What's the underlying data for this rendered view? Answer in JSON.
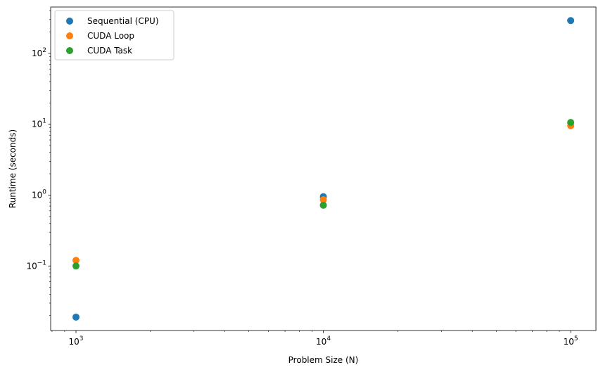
{
  "chart_data": {
    "type": "scatter",
    "xlabel": "Problem Size (N)",
    "ylabel": "Runtime (seconds)",
    "xscale": "log",
    "yscale": "log",
    "xlim": [
      790,
      126500
    ],
    "ylim": [
      0.0123,
      450
    ],
    "x_ticks": [
      {
        "value": 1000,
        "base": "10",
        "exp": "3"
      },
      {
        "value": 10000,
        "base": "10",
        "exp": "4"
      },
      {
        "value": 100000,
        "base": "10",
        "exp": "5"
      }
    ],
    "y_ticks": [
      {
        "value": 0.1,
        "base": "10",
        "exp": "−1"
      },
      {
        "value": 1,
        "base": "10",
        "exp": "0"
      },
      {
        "value": 10,
        "base": "10",
        "exp": "1"
      },
      {
        "value": 100,
        "base": "10",
        "exp": "2"
      }
    ],
    "grid": false,
    "legend_position": "top-left",
    "series": [
      {
        "name": "Sequential (CPU)",
        "color": "#1f77b4",
        "x": [
          1000,
          10000,
          100000
        ],
        "y": [
          0.019,
          0.95,
          290
        ]
      },
      {
        "name": "CUDA Loop",
        "color": "#ff7f0e",
        "x": [
          1000,
          10000,
          100000
        ],
        "y": [
          0.12,
          0.86,
          9.5
        ]
      },
      {
        "name": "CUDA Task",
        "color": "#2ca02c",
        "x": [
          1000,
          10000,
          100000
        ],
        "y": [
          0.1,
          0.72,
          10.6
        ]
      }
    ]
  }
}
